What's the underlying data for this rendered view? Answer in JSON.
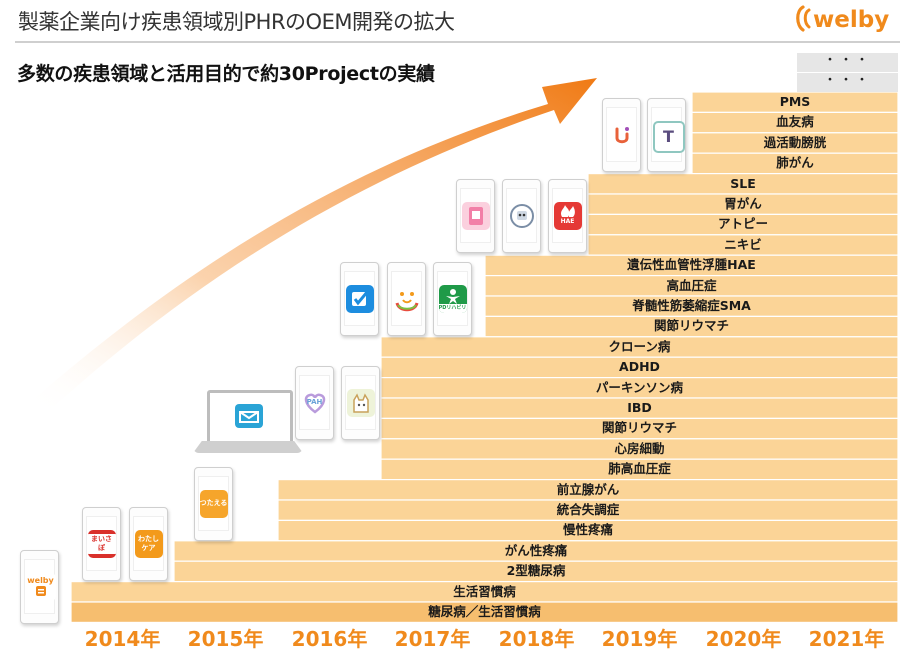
{
  "header": {
    "title": "製薬企業向け疾患領域別PHRのOEM開発の拡大",
    "subtitle": "多数の疾患領域と活用目的で約30Projectの実績",
    "logo_text": "welby",
    "brand_color": "#f08a1c"
  },
  "colors": {
    "bar": "#fbd497",
    "bar_base": "#f6be6f",
    "arrow": "#f28222"
  },
  "years": [
    "2014年",
    "2015年",
    "2016年",
    "2017年",
    "2018年",
    "2019年",
    "2020年",
    "2021年"
  ],
  "continuation_markers": [
    "・・・",
    "・・・"
  ],
  "rows": [
    {
      "label": "PMS",
      "year": "2020年"
    },
    {
      "label": "血友病",
      "year": "2020年"
    },
    {
      "label": "過活動膀胱",
      "year": "2020年"
    },
    {
      "label": "肺がん",
      "year": "2020年"
    },
    {
      "label": "SLE",
      "year": "2019年"
    },
    {
      "label": "胃がん",
      "year": "2019年"
    },
    {
      "label": "アトピー",
      "year": "2019年"
    },
    {
      "label": "ニキビ",
      "year": "2019年"
    },
    {
      "label": "遺伝性血管性浮腫HAE",
      "year": "2018年"
    },
    {
      "label": "高血圧症",
      "year": "2018年"
    },
    {
      "label": "脊髄性筋萎縮症SMA",
      "year": "2018年"
    },
    {
      "label": "関節リウマチ",
      "year": "2018年"
    },
    {
      "label": "クローン病",
      "year": "2017年"
    },
    {
      "label": "ADHD",
      "year": "2017年"
    },
    {
      "label": "パーキンソン病",
      "year": "2017年"
    },
    {
      "label": "IBD",
      "year": "2017年"
    },
    {
      "label": "関節リウマチ",
      "year": "2017年"
    },
    {
      "label": "心房細動",
      "year": "2017年"
    },
    {
      "label": "肺高血圧症",
      "year": "2017年"
    },
    {
      "label": "前立腺がん",
      "year": "2016年"
    },
    {
      "label": "統合失調症",
      "year": "2016年"
    },
    {
      "label": "慢性疼痛",
      "year": "2016年"
    },
    {
      "label": "がん性疼痛",
      "year": "2015年"
    },
    {
      "label": "2型糖尿病",
      "year": "2015年"
    },
    {
      "label": "生活習慣病",
      "year": "2014年"
    },
    {
      "label": "糖尿病／生活習慣病",
      "year": "2014年"
    }
  ],
  "apps": [
    {
      "name": "welby-app",
      "text": "welby",
      "color": "#ffffff"
    },
    {
      "name": "maisaho-app",
      "text": "まいさぽ",
      "color": "#d9302b"
    },
    {
      "name": "watashi-care-app",
      "text": "わたし ケア",
      "color": "#f39a1b"
    },
    {
      "name": "tsutaeru-app",
      "text": "つたえる",
      "color": "#f6a52b"
    },
    {
      "name": "pah-app",
      "text": "PAH",
      "color": "#ffffff"
    },
    {
      "name": "cat-app",
      "text": "",
      "color": "#eef3d9"
    },
    {
      "name": "check-app",
      "text": "",
      "color": "#1d8ddf"
    },
    {
      "name": "smile-app",
      "text": "",
      "color": "#ffffff"
    },
    {
      "name": "pd-rehab-app",
      "text": "PDリハビリ",
      "color": "#1f9a48"
    },
    {
      "name": "pink-app",
      "text": "",
      "color": "#f4a6c1"
    },
    {
      "name": "robot-app",
      "text": "",
      "color": "#ffffff"
    },
    {
      "name": "hae-app",
      "text": "HAE",
      "color": "#e53935"
    },
    {
      "name": "u-app",
      "text": "",
      "color": "#ffffff"
    },
    {
      "name": "t-app",
      "text": "T",
      "color": "#ffffff"
    }
  ]
}
